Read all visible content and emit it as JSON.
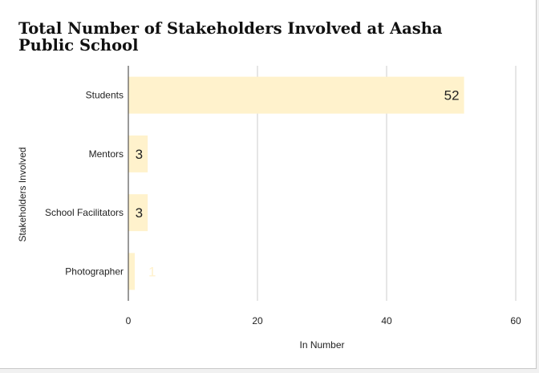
{
  "chart_data": {
    "type": "bar",
    "orientation": "horizontal",
    "title": "Total Number of Stakeholders Involved at Aasha Public School",
    "categories": [
      "Students",
      "Mentors",
      "School Facilitators",
      "Photographer"
    ],
    "values": [
      52,
      3,
      3,
      1
    ],
    "data_labels": [
      "52",
      "3",
      "3",
      "1"
    ],
    "xlabel": "In Number",
    "ylabel": "Stakeholders Involved",
    "xlim": [
      0,
      60
    ],
    "xticks": [
      "0",
      "20",
      "40",
      "60"
    ],
    "grid": true,
    "legend": "none",
    "colors": {
      "bar": "#fff2cc",
      "label_inside": "#222222",
      "label_outside": "#fff2cc",
      "grid": "#cccccc",
      "axis": "#333333"
    }
  }
}
